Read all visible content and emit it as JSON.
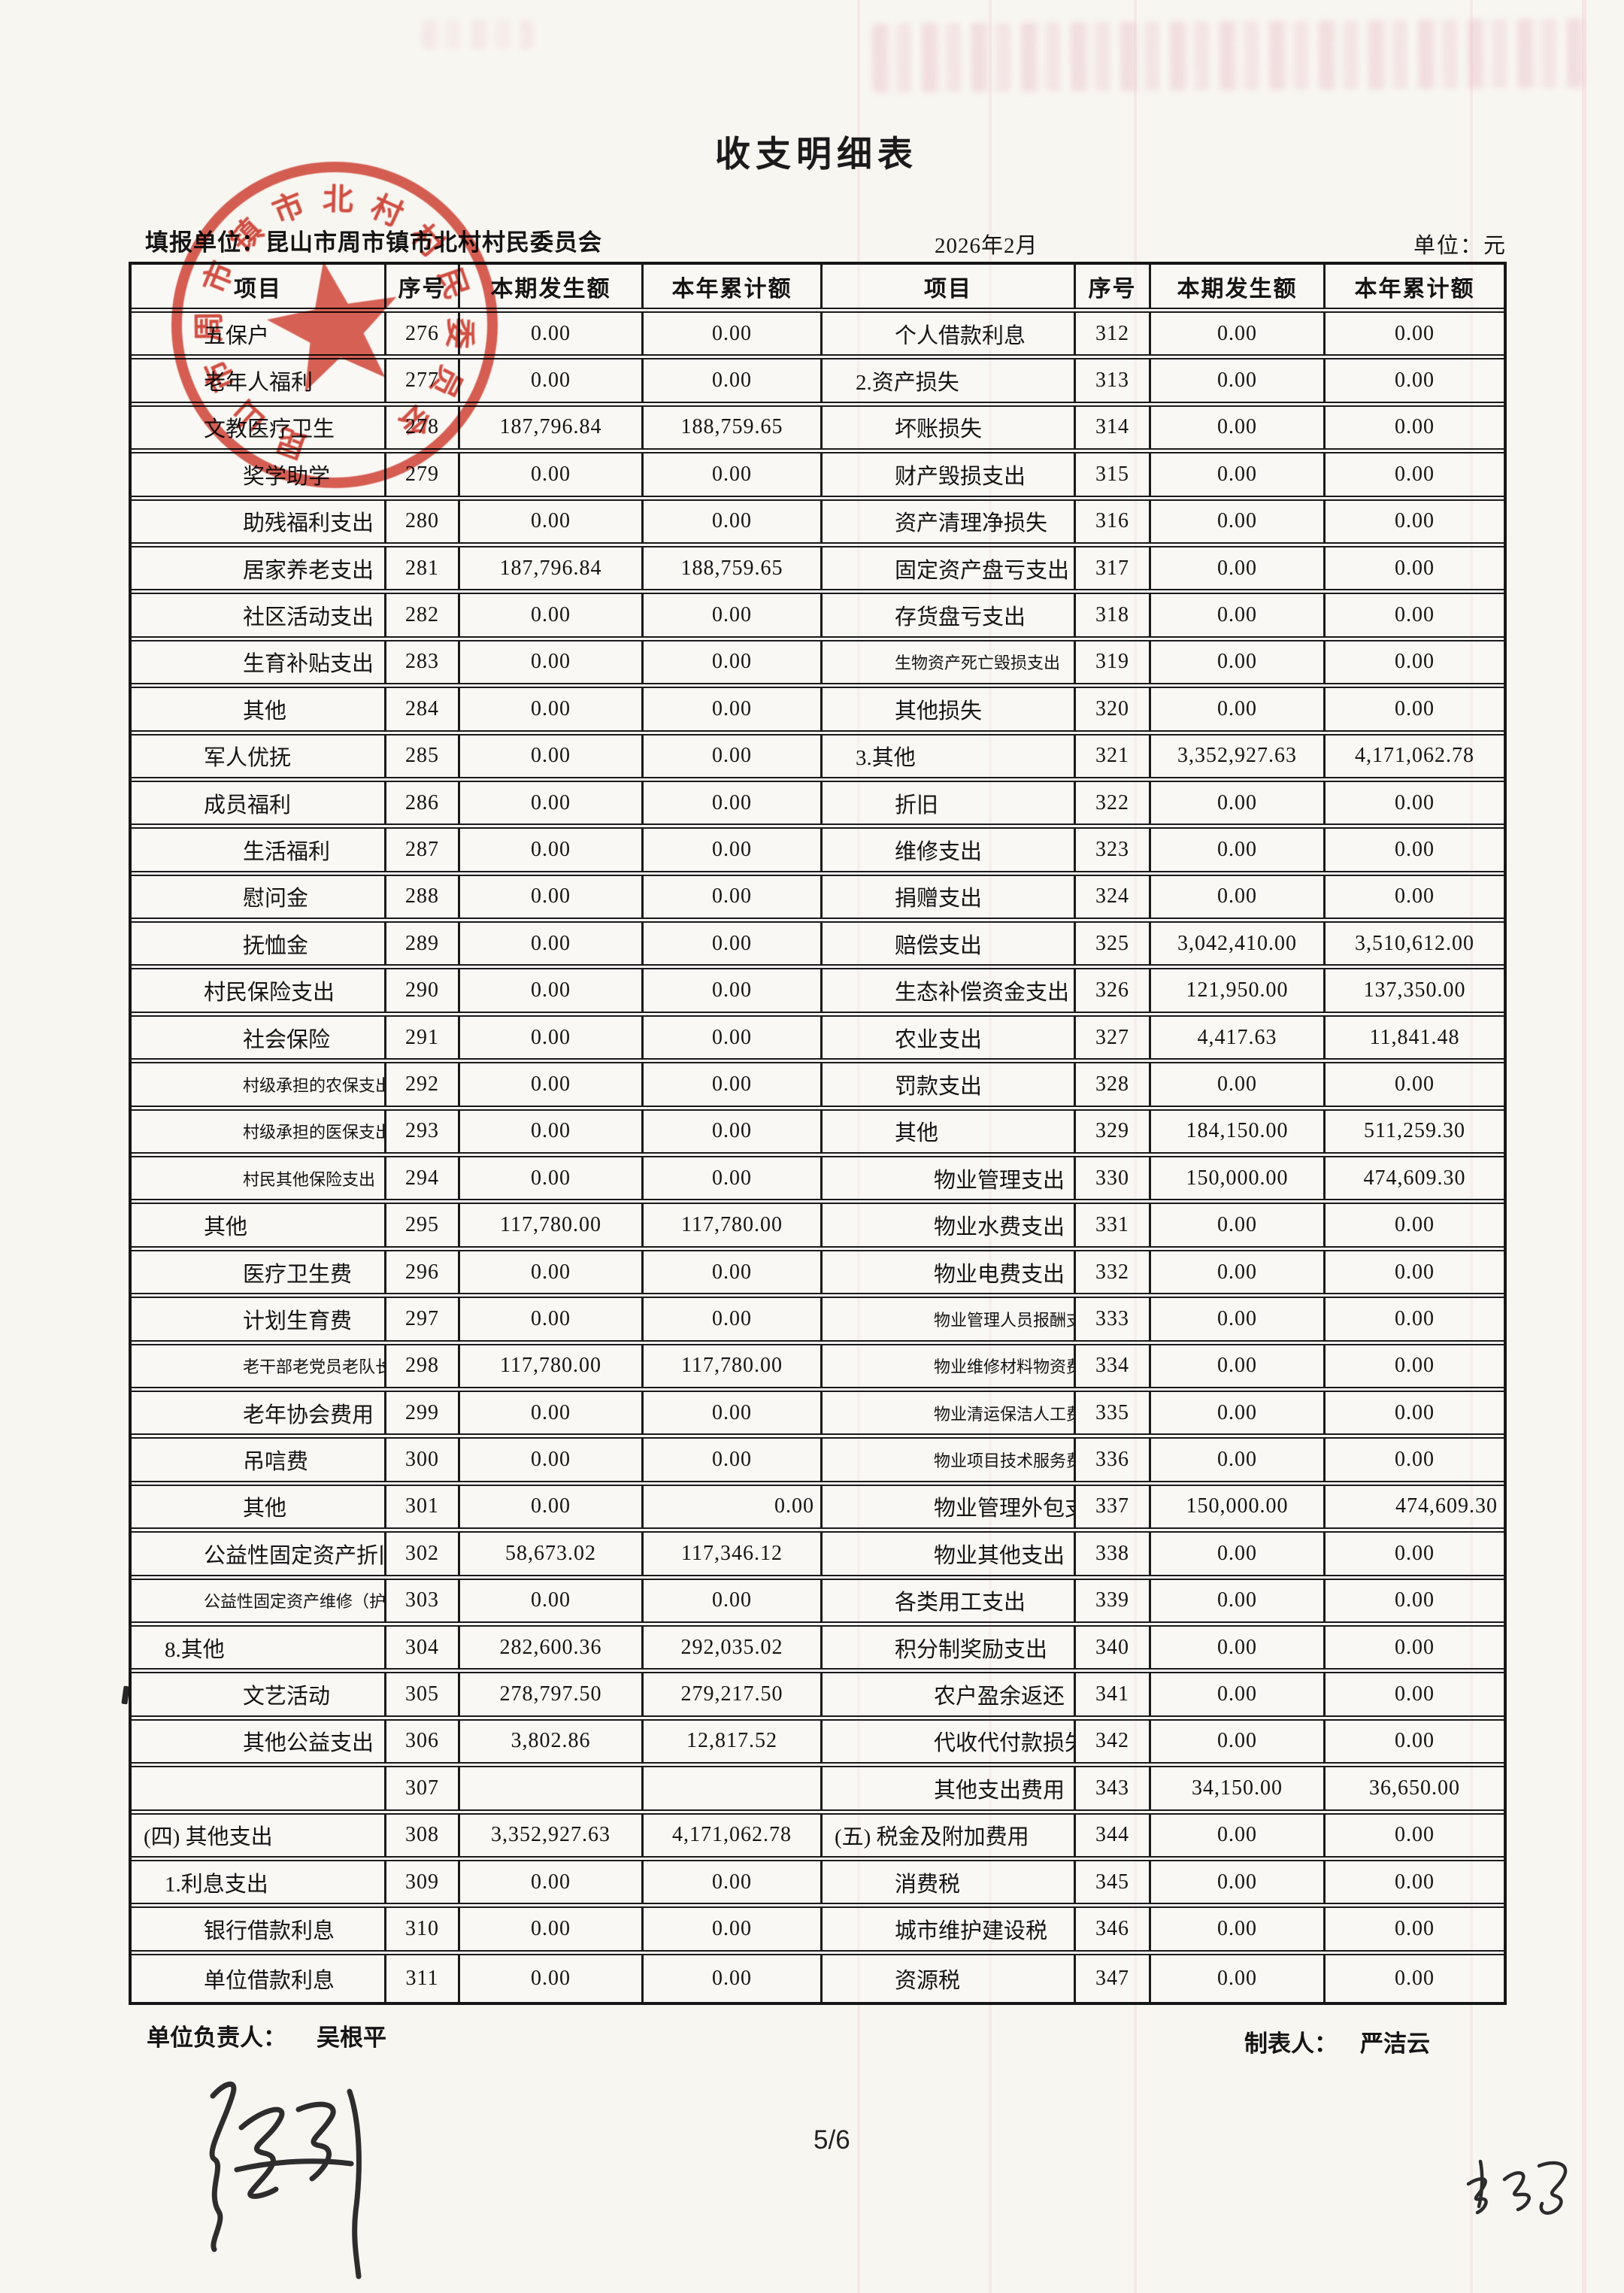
{
  "title": "收支明细表",
  "meta": {
    "unit_label": "填报单位：昆山市周市镇市北村村民委员会",
    "period": "2026年2月",
    "currency_label": "单位：元"
  },
  "table": {
    "columns": [
      "项目",
      "序号",
      "本期发生额",
      "本年累计额"
    ],
    "rows": [
      {
        "left": {
          "item": "五保户",
          "no": "276",
          "current": "0.00",
          "ytd": "0.00",
          "indent": 2
        },
        "right": {
          "item": "个人借款利息",
          "no": "312",
          "current": "0.00",
          "ytd": "0.00",
          "indent": 2
        }
      },
      {
        "left": {
          "item": "老年人福利",
          "no": "277",
          "current": "0.00",
          "ytd": "0.00",
          "indent": 2
        },
        "right": {
          "item": "2.资产损失",
          "no": "313",
          "current": "0.00",
          "ytd": "0.00",
          "indent": 1
        }
      },
      {
        "left": {
          "item": "文教医疗卫生",
          "no": "278",
          "current": "187,796.84",
          "ytd": "188,759.65",
          "indent": 2
        },
        "right": {
          "item": "坏账损失",
          "no": "314",
          "current": "0.00",
          "ytd": "0.00",
          "indent": 2
        }
      },
      {
        "left": {
          "item": "奖学助学",
          "no": "279",
          "current": "0.00",
          "ytd": "0.00",
          "indent": 3
        },
        "right": {
          "item": "财产毁损支出",
          "no": "315",
          "current": "0.00",
          "ytd": "0.00",
          "indent": 2
        }
      },
      {
        "left": {
          "item": "助残福利支出",
          "no": "280",
          "current": "0.00",
          "ytd": "0.00",
          "indent": 3
        },
        "right": {
          "item": "资产清理净损失",
          "no": "316",
          "current": "0.00",
          "ytd": "0.00",
          "indent": 2
        }
      },
      {
        "left": {
          "item": "居家养老支出",
          "no": "281",
          "current": "187,796.84",
          "ytd": "188,759.65",
          "indent": 3
        },
        "right": {
          "item": "固定资产盘亏支出",
          "no": "317",
          "current": "0.00",
          "ytd": "0.00",
          "indent": 2
        }
      },
      {
        "left": {
          "item": "社区活动支出",
          "no": "282",
          "current": "0.00",
          "ytd": "0.00",
          "indent": 3
        },
        "right": {
          "item": "存货盘亏支出",
          "no": "318",
          "current": "0.00",
          "ytd": "0.00",
          "indent": 2
        }
      },
      {
        "left": {
          "item": "生育补贴支出",
          "no": "283",
          "current": "0.00",
          "ytd": "0.00",
          "indent": 3
        },
        "right": {
          "item": "生物资产死亡毁损支出",
          "no": "319",
          "current": "0.00",
          "ytd": "0.00",
          "indent": 2,
          "small": true
        }
      },
      {
        "left": {
          "item": "其他",
          "no": "284",
          "current": "0.00",
          "ytd": "0.00",
          "indent": 3
        },
        "right": {
          "item": "其他损失",
          "no": "320",
          "current": "0.00",
          "ytd": "0.00",
          "indent": 2
        }
      },
      {
        "left": {
          "item": "军人优抚",
          "no": "285",
          "current": "0.00",
          "ytd": "0.00",
          "indent": 2
        },
        "right": {
          "item": "3.其他",
          "no": "321",
          "current": "3,352,927.63",
          "ytd": "4,171,062.78",
          "indent": 1
        }
      },
      {
        "left": {
          "item": "成员福利",
          "no": "286",
          "current": "0.00",
          "ytd": "0.00",
          "indent": 2
        },
        "right": {
          "item": "折旧",
          "no": "322",
          "current": "0.00",
          "ytd": "0.00",
          "indent": 2
        }
      },
      {
        "left": {
          "item": "生活福利",
          "no": "287",
          "current": "0.00",
          "ytd": "0.00",
          "indent": 3
        },
        "right": {
          "item": "维修支出",
          "no": "323",
          "current": "0.00",
          "ytd": "0.00",
          "indent": 2
        }
      },
      {
        "left": {
          "item": "慰问金",
          "no": "288",
          "current": "0.00",
          "ytd": "0.00",
          "indent": 3
        },
        "right": {
          "item": "捐赠支出",
          "no": "324",
          "current": "0.00",
          "ytd": "0.00",
          "indent": 2
        }
      },
      {
        "left": {
          "item": "抚恤金",
          "no": "289",
          "current": "0.00",
          "ytd": "0.00",
          "indent": 3
        },
        "right": {
          "item": "赔偿支出",
          "no": "325",
          "current": "3,042,410.00",
          "ytd": "3,510,612.00",
          "indent": 2
        }
      },
      {
        "left": {
          "item": "村民保险支出",
          "no": "290",
          "current": "0.00",
          "ytd": "0.00",
          "indent": 2
        },
        "right": {
          "item": "生态补偿资金支出",
          "no": "326",
          "current": "121,950.00",
          "ytd": "137,350.00",
          "indent": 2
        }
      },
      {
        "left": {
          "item": "社会保险",
          "no": "291",
          "current": "0.00",
          "ytd": "0.00",
          "indent": 3
        },
        "right": {
          "item": "农业支出",
          "no": "327",
          "current": "4,417.63",
          "ytd": "11,841.48",
          "indent": 2
        }
      },
      {
        "left": {
          "item": "村级承担的农保支出",
          "no": "292",
          "current": "0.00",
          "ytd": "0.00",
          "indent": 3,
          "small": true
        },
        "right": {
          "item": "罚款支出",
          "no": "328",
          "current": "0.00",
          "ytd": "0.00",
          "indent": 2
        }
      },
      {
        "left": {
          "item": "村级承担的医保支出",
          "no": "293",
          "current": "0.00",
          "ytd": "0.00",
          "indent": 3,
          "small": true
        },
        "right": {
          "item": "其他",
          "no": "329",
          "current": "184,150.00",
          "ytd": "511,259.30",
          "indent": 2
        }
      },
      {
        "left": {
          "item": "村民其他保险支出",
          "no": "294",
          "current": "0.00",
          "ytd": "0.00",
          "indent": 3,
          "small": true
        },
        "right": {
          "item": "物业管理支出",
          "no": "330",
          "current": "150,000.00",
          "ytd": "474,609.30",
          "indent": 3
        }
      },
      {
        "left": {
          "item": "其他",
          "no": "295",
          "current": "117,780.00",
          "ytd": "117,780.00",
          "indent": 2
        },
        "right": {
          "item": "物业水费支出",
          "no": "331",
          "current": "0.00",
          "ytd": "0.00",
          "indent": 3
        }
      },
      {
        "left": {
          "item": "医疗卫生费",
          "no": "296",
          "current": "0.00",
          "ytd": "0.00",
          "indent": 3
        },
        "right": {
          "item": "物业电费支出",
          "no": "332",
          "current": "0.00",
          "ytd": "0.00",
          "indent": 3
        }
      },
      {
        "left": {
          "item": "计划生育费",
          "no": "297",
          "current": "0.00",
          "ytd": "0.00",
          "indent": 3
        },
        "right": {
          "item": "物业管理人员报酬支出",
          "no": "333",
          "current": "0.00",
          "ytd": "0.00",
          "indent": 3,
          "small": true
        }
      },
      {
        "left": {
          "item": "老干部老党员老队长补贴",
          "no": "298",
          "current": "117,780.00",
          "ytd": "117,780.00",
          "indent": 3,
          "small": true
        },
        "right": {
          "item": "物业维修材料物资费用.",
          "no": "334",
          "current": "0.00",
          "ytd": "0.00",
          "indent": 3,
          "small": true
        }
      },
      {
        "left": {
          "item": "老年协会费用",
          "no": "299",
          "current": "0.00",
          "ytd": "0.00",
          "indent": 3
        },
        "right": {
          "item": "物业清运保洁人工费用",
          "no": "335",
          "current": "0.00",
          "ytd": "0.00",
          "indent": 3,
          "small": true
        }
      },
      {
        "left": {
          "item": "吊唁费",
          "no": "300",
          "current": "0.00",
          "ytd": "0.00",
          "indent": 3
        },
        "right": {
          "item": "物业项目技术服务费用",
          "no": "336",
          "current": "0.00",
          "ytd": "0.00",
          "indent": 3,
          "small": true
        }
      },
      {
        "left": {
          "item": "其他",
          "no": "301",
          "current": "0.00",
          "ytd": "0.00",
          "indent": 3,
          "ytd_right": true
        },
        "right": {
          "item": "物业管理外包支出",
          "no": "337",
          "current": "150,000.00",
          "ytd": "474,609.30",
          "indent": 3,
          "ytd_right": true
        }
      },
      {
        "left": {
          "item": "公益性固定资产折旧",
          "no": "302",
          "current": "58,673.02",
          "ytd": "117,346.12",
          "indent": 2
        },
        "right": {
          "item": "物业其他支出",
          "no": "338",
          "current": "0.00",
          "ytd": "0.00",
          "indent": 3
        }
      },
      {
        "left": {
          "item": "公益性固定资产维修（护）",
          "no": "303",
          "current": "0.00",
          "ytd": "0.00",
          "indent": 2,
          "small": true
        },
        "right": {
          "item": "各类用工支出",
          "no": "339",
          "current": "0.00",
          "ytd": "0.00",
          "indent": 2
        }
      },
      {
        "left": {
          "item": "8.其他",
          "no": "304",
          "current": "282,600.36",
          "ytd": "292,035.02",
          "indent": 1
        },
        "right": {
          "item": "积分制奖励支出",
          "no": "340",
          "current": "0.00",
          "ytd": "0.00",
          "indent": 2
        }
      },
      {
        "left": {
          "item": "文艺活动",
          "no": "305",
          "current": "278,797.50",
          "ytd": "279,217.50",
          "indent": 3
        },
        "right": {
          "item": "农户盈余返还",
          "no": "341",
          "current": "0.00",
          "ytd": "0.00",
          "indent": 3
        }
      },
      {
        "left": {
          "item": "其他公益支出",
          "no": "306",
          "current": "3,802.86",
          "ytd": "12,817.52",
          "indent": 3
        },
        "right": {
          "item": "代收代付款损失",
          "no": "342",
          "current": "0.00",
          "ytd": "0.00",
          "indent": 3
        }
      },
      {
        "left": {
          "item": "",
          "no": "307",
          "current": "",
          "ytd": "",
          "indent": 3
        },
        "right": {
          "item": "其他支出费用",
          "no": "343",
          "current": "34,150.00",
          "ytd": "36,650.00",
          "indent": 3
        }
      },
      {
        "left": {
          "item": "(四) 其他支出",
          "no": "308",
          "current": "3,352,927.63",
          "ytd": "4,171,062.78",
          "indent": 0
        },
        "right": {
          "item": "(五) 税金及附加费用",
          "no": "344",
          "current": "0.00",
          "ytd": "0.00",
          "indent": 0
        }
      },
      {
        "left": {
          "item": "1.利息支出",
          "no": "309",
          "current": "0.00",
          "ytd": "0.00",
          "indent": 1
        },
        "right": {
          "item": "消费税",
          "no": "345",
          "current": "0.00",
          "ytd": "0.00",
          "indent": 2
        }
      },
      {
        "left": {
          "item": "银行借款利息",
          "no": "310",
          "current": "0.00",
          "ytd": "0.00",
          "indent": 2
        },
        "right": {
          "item": "城市维护建设税",
          "no": "346",
          "current": "0.00",
          "ytd": "0.00",
          "indent": 2
        }
      },
      {
        "left": {
          "item": "单位借款利息",
          "no": "311",
          "current": "0.00",
          "ytd": "0.00",
          "indent": 2
        },
        "right": {
          "item": "资源税",
          "no": "347",
          "current": "0.00",
          "ytd": "0.00",
          "indent": 2
        }
      }
    ]
  },
  "footer": {
    "responsible_label": "单位负责人：",
    "responsible_name": "吴根平",
    "preparer_label": "制表人：",
    "preparer_name": "严洁云",
    "page_number": "5/6"
  },
  "stamp": {
    "text": "昆山市周市镇市北村村民委员会",
    "color": "#d13a2c"
  }
}
